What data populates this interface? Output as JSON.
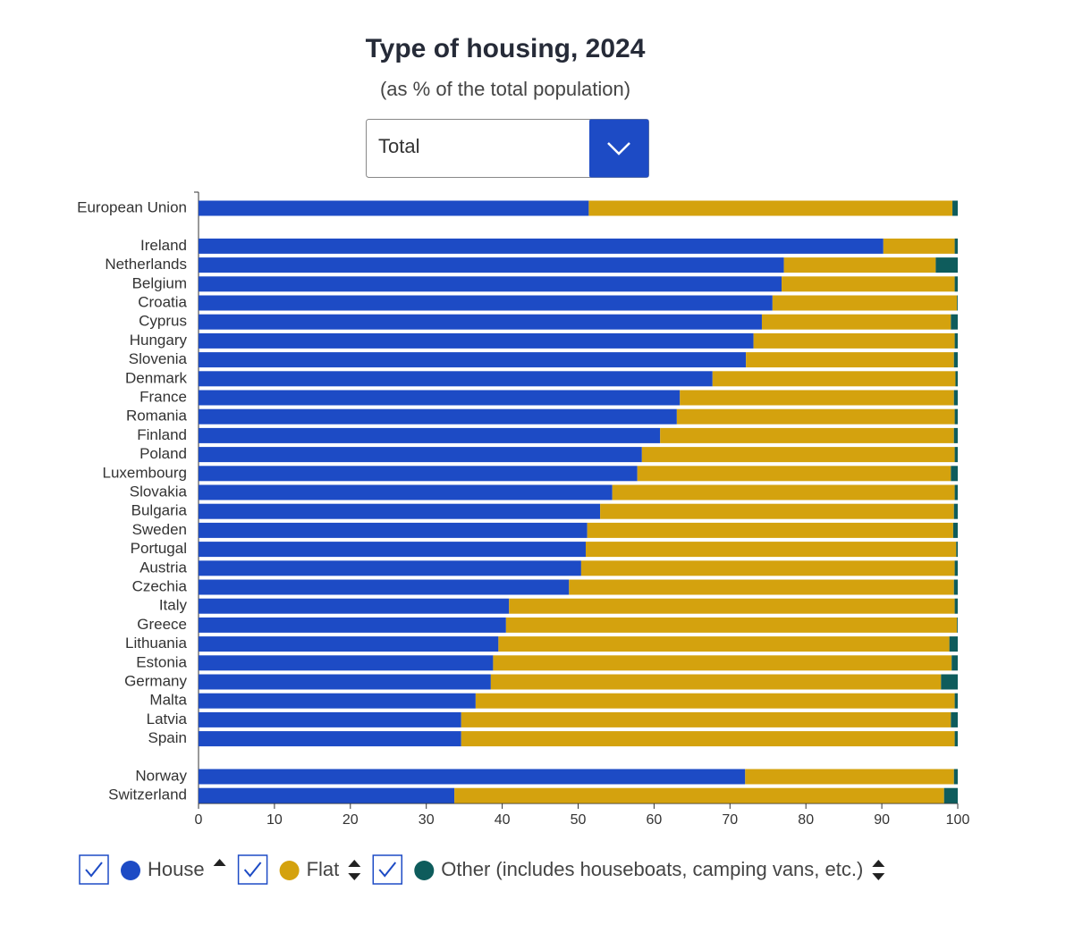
{
  "controls": {
    "dropdown": "Total"
  },
  "chart_data": {
    "type": "stacked-barh",
    "title": "Type of housing, 2024",
    "subtitle": "(as % of the total population)",
    "categories": [
      "European Union",
      null,
      "Ireland",
      "Netherlands",
      "Belgium",
      "Croatia",
      "Cyprus",
      "Hungary",
      "Slovenia",
      "Denmark",
      "France",
      "Romania",
      "Finland",
      "Poland",
      "Luxembourg",
      "Slovakia",
      "Bulgaria",
      "Sweden",
      "Portugal",
      "Austria",
      "Czechia",
      "Italy",
      "Greece",
      "Lithuania",
      "Estonia",
      "Germany",
      "Malta",
      "Latvia",
      "Spain",
      null,
      "Norway",
      "Switzerland"
    ],
    "series": [
      {
        "name": "House",
        "color": "#1d4bc5",
        "values": [
          51.4,
          null,
          90.2,
          77.1,
          76.8,
          75.6,
          74.2,
          73.1,
          72.1,
          67.7,
          63.4,
          63.0,
          60.8,
          58.4,
          57.8,
          54.5,
          52.9,
          51.2,
          51.0,
          50.4,
          48.8,
          40.9,
          40.5,
          39.5,
          38.8,
          38.5,
          36.5,
          34.6,
          34.6,
          null,
          72.0,
          33.7
        ]
      },
      {
        "name": "Flat",
        "color": "#d4a20e",
        "values": [
          47.9,
          null,
          9.4,
          20.0,
          22.8,
          24.3,
          24.9,
          26.5,
          27.4,
          32.0,
          36.1,
          36.6,
          38.7,
          41.2,
          41.3,
          45.1,
          46.6,
          48.2,
          48.8,
          49.2,
          50.7,
          58.7,
          59.4,
          59.4,
          60.4,
          59.3,
          63.1,
          64.5,
          65.0,
          null,
          27.5,
          64.5
        ]
      },
      {
        "name": "Other (includes houseboats, camping vans, etc.)",
        "color": "#0e5c5c",
        "values": [
          0.7,
          null,
          0.4,
          2.9,
          0.4,
          0.1,
          0.9,
          0.4,
          0.5,
          0.3,
          0.5,
          0.4,
          0.5,
          0.4,
          0.9,
          0.4,
          0.5,
          0.6,
          0.2,
          0.4,
          0.5,
          0.4,
          0.1,
          1.1,
          0.8,
          2.2,
          0.4,
          0.9,
          0.4,
          null,
          0.5,
          1.8
        ]
      }
    ],
    "xlim": [
      0,
      100
    ],
    "xticks": [
      0,
      10,
      20,
      30,
      40,
      50,
      60,
      70,
      80,
      90,
      100
    ]
  }
}
